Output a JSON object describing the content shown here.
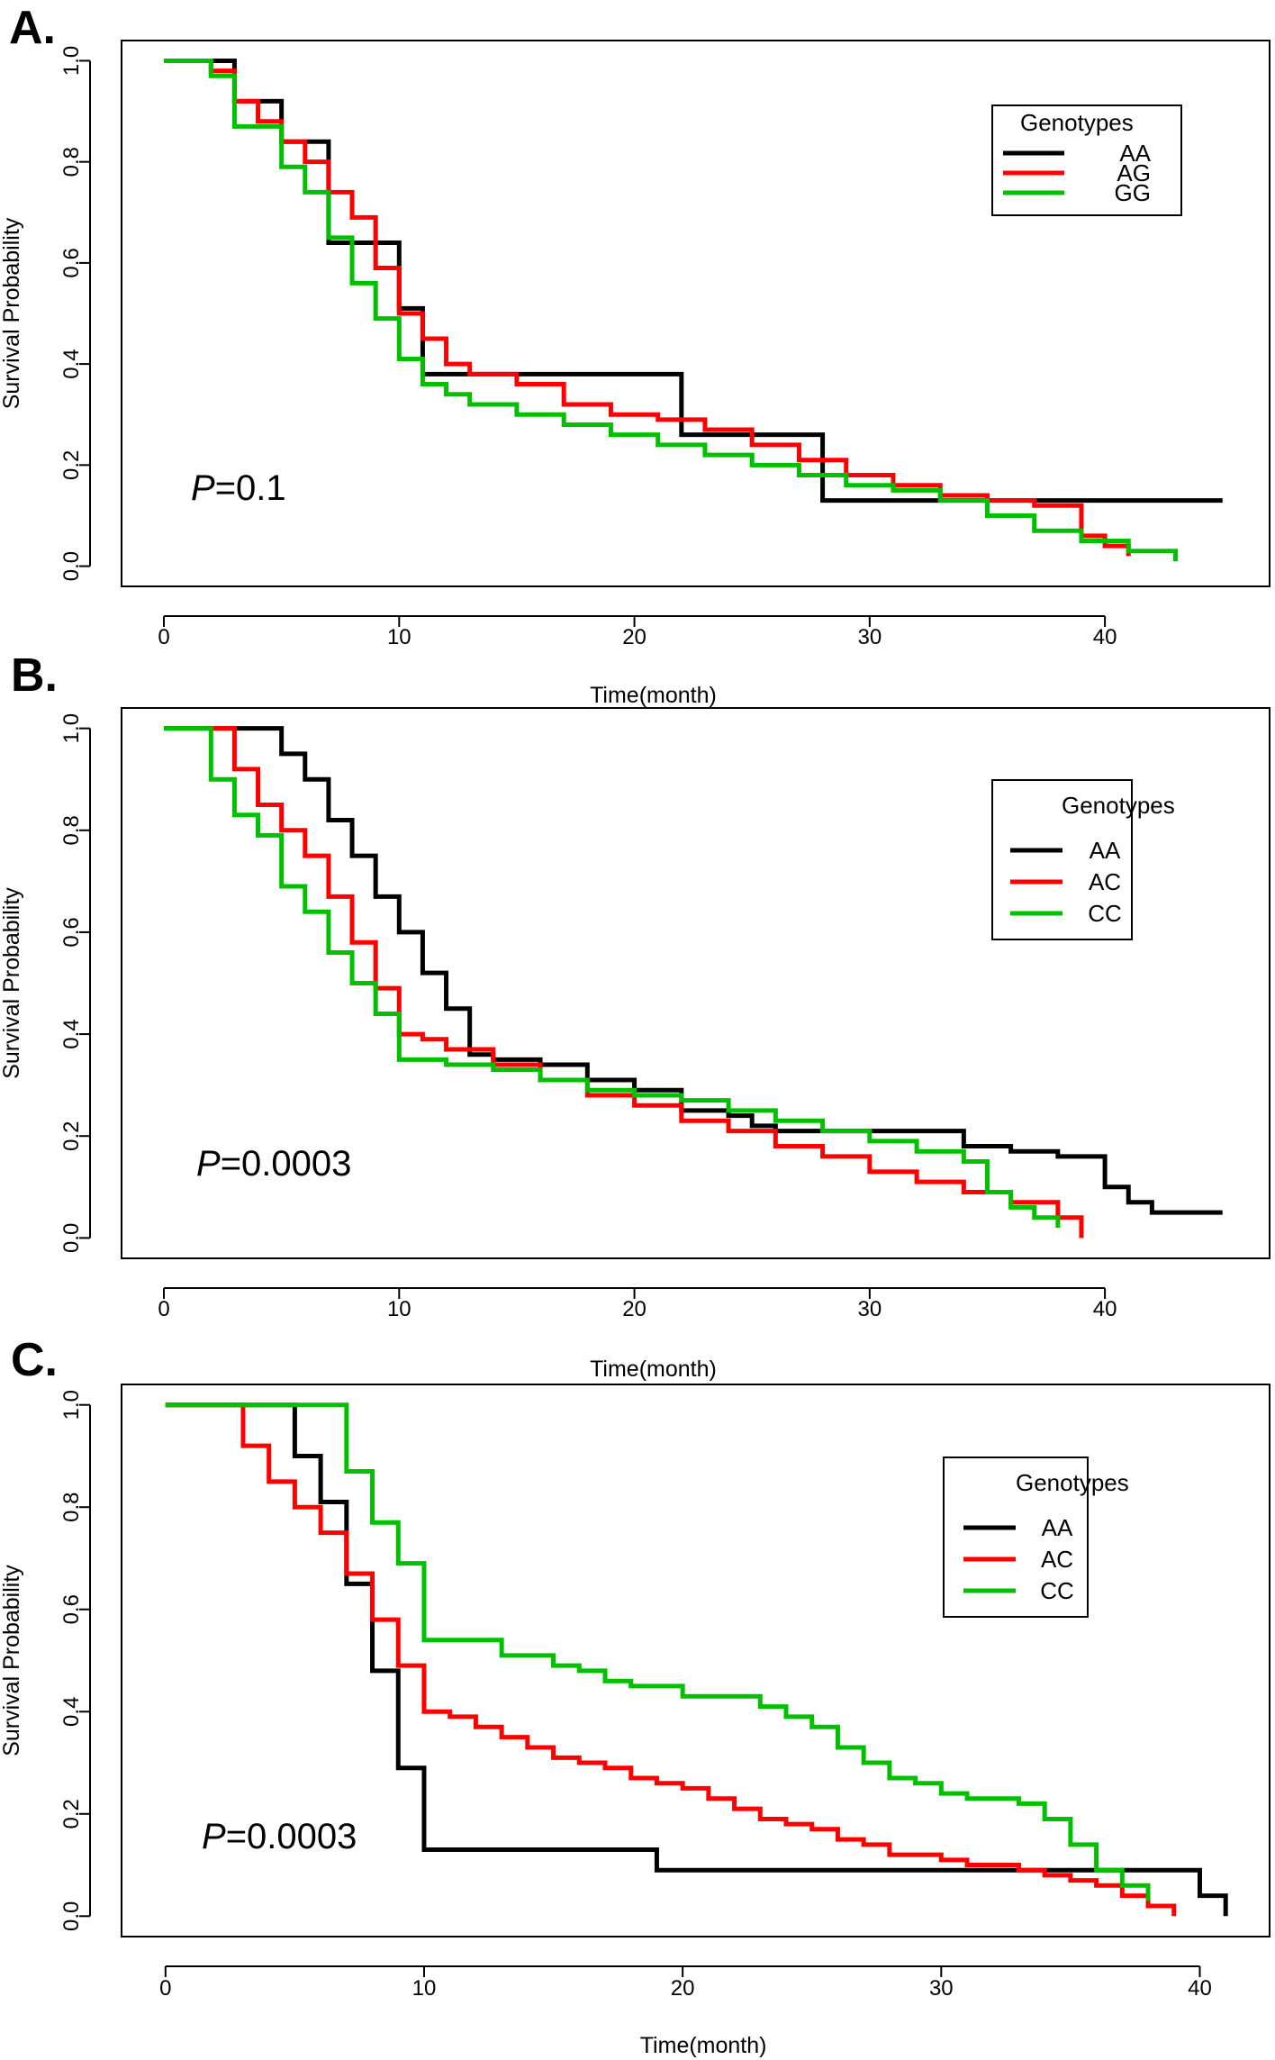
{
  "figure": {
    "x_title": "Time(month)",
    "y_title": "Survival Probability"
  },
  "chart_data": [
    {
      "type": "line",
      "panel": "A.",
      "title": "",
      "xlabel": "Time(month)",
      "ylabel": "Survival Probability",
      "xlim": [
        -1.8,
        47.0
      ],
      "ylim": [
        -0.04,
        1.04
      ],
      "x_ticks": [
        0,
        10,
        20,
        30,
        40
      ],
      "y_ticks": [
        0.0,
        0.2,
        0.4,
        0.6,
        0.8,
        1.0
      ],
      "x_tick_labels": [
        "0",
        "10",
        "20",
        "30",
        "40"
      ],
      "y_tick_labels": [
        "0.0",
        "0.2",
        "0.4",
        "0.6",
        "0.8",
        "1.0"
      ],
      "p_label": "P",
      "p_value": "=0.1",
      "legend": {
        "title": "Genotypes",
        "position": "top-right",
        "style": "right-aligned"
      },
      "series": [
        {
          "name": "AA",
          "color": "#000000",
          "x": [
            0,
            3,
            5,
            7,
            8,
            10,
            11,
            22,
            28,
            45
          ],
          "y": [
            1.0,
            0.92,
            0.84,
            0.64,
            0.64,
            0.51,
            0.38,
            0.26,
            0.13,
            0.13
          ]
        },
        {
          "name": "AG",
          "color": "#ff0000",
          "x": [
            0,
            2,
            3,
            4,
            5,
            6,
            7,
            8,
            9,
            10,
            11,
            12,
            13,
            15,
            17,
            19,
            21,
            23,
            25,
            27,
            29,
            31,
            33,
            35,
            37,
            39,
            40,
            41
          ],
          "y": [
            1.0,
            0.98,
            0.92,
            0.88,
            0.84,
            0.8,
            0.74,
            0.69,
            0.59,
            0.5,
            0.45,
            0.4,
            0.38,
            0.36,
            0.32,
            0.3,
            0.29,
            0.27,
            0.24,
            0.21,
            0.18,
            0.16,
            0.14,
            0.13,
            0.12,
            0.06,
            0.04,
            0.02
          ]
        },
        {
          "name": "GG",
          "color": "#00c000",
          "x": [
            0,
            2,
            3,
            5,
            6,
            7,
            8,
            9,
            10,
            11,
            12,
            13,
            15,
            17,
            19,
            21,
            23,
            25,
            27,
            29,
            31,
            33,
            35,
            37,
            39,
            41,
            43
          ],
          "y": [
            1.0,
            0.97,
            0.87,
            0.79,
            0.74,
            0.65,
            0.56,
            0.49,
            0.41,
            0.36,
            0.34,
            0.32,
            0.3,
            0.28,
            0.26,
            0.24,
            0.22,
            0.2,
            0.18,
            0.16,
            0.15,
            0.13,
            0.1,
            0.07,
            0.05,
            0.03,
            0.01
          ]
        }
      ]
    },
    {
      "type": "line",
      "panel": "B.",
      "title": "",
      "xlabel": "Time(month)",
      "ylabel": "Survival Probability",
      "xlim": [
        -1.8,
        47.0
      ],
      "ylim": [
        -0.04,
        1.04
      ],
      "x_ticks": [
        0,
        10,
        20,
        30,
        40
      ],
      "y_ticks": [
        0.0,
        0.2,
        0.4,
        0.6,
        0.8,
        1.0
      ],
      "x_tick_labels": [
        "0",
        "10",
        "20",
        "30",
        "40"
      ],
      "y_tick_labels": [
        "0.0",
        "0.2",
        "0.4",
        "0.6",
        "0.8",
        "1.0"
      ],
      "p_label": "P",
      "p_value": "=0.0003",
      "legend": {
        "title": "Genotypes",
        "position": "top-right",
        "style": "centered"
      },
      "series": [
        {
          "name": "AA",
          "color": "#000000",
          "x": [
            0,
            5,
            6,
            7,
            8,
            9,
            10,
            11,
            12,
            13,
            14,
            16,
            18,
            20,
            22,
            24,
            25,
            26,
            28,
            30,
            34,
            36,
            38,
            40,
            41,
            42,
            45
          ],
          "y": [
            1.0,
            0.95,
            0.9,
            0.82,
            0.75,
            0.67,
            0.6,
            0.52,
            0.45,
            0.36,
            0.35,
            0.34,
            0.31,
            0.29,
            0.25,
            0.24,
            0.22,
            0.21,
            0.21,
            0.21,
            0.18,
            0.17,
            0.16,
            0.1,
            0.07,
            0.05,
            0.05
          ]
        },
        {
          "name": "AC",
          "color": "#ff0000",
          "x": [
            0,
            3,
            4,
            5,
            6,
            7,
            8,
            9,
            10,
            11,
            12,
            14,
            16,
            18,
            20,
            22,
            24,
            26,
            28,
            30,
            32,
            34,
            36,
            38,
            39
          ],
          "y": [
            1.0,
            0.92,
            0.85,
            0.8,
            0.75,
            0.67,
            0.58,
            0.49,
            0.4,
            0.39,
            0.37,
            0.34,
            0.31,
            0.28,
            0.26,
            0.23,
            0.21,
            0.18,
            0.16,
            0.13,
            0.11,
            0.09,
            0.07,
            0.04,
            0.0
          ]
        },
        {
          "name": "CC",
          "color": "#00c000",
          "x": [
            0,
            2,
            3,
            4,
            5,
            6,
            7,
            8,
            9,
            10,
            12,
            14,
            16,
            18,
            20,
            22,
            24,
            26,
            28,
            30,
            32,
            34,
            35,
            36,
            37,
            38
          ],
          "y": [
            1.0,
            0.9,
            0.83,
            0.79,
            0.69,
            0.64,
            0.56,
            0.5,
            0.44,
            0.35,
            0.34,
            0.33,
            0.31,
            0.29,
            0.28,
            0.27,
            0.25,
            0.23,
            0.21,
            0.19,
            0.17,
            0.15,
            0.09,
            0.06,
            0.04,
            0.02
          ]
        }
      ]
    },
    {
      "type": "line",
      "panel": "C.",
      "title": "",
      "xlabel": "Time(month)",
      "ylabel": "Survival Probability",
      "xlim": [
        -1.7,
        42.7
      ],
      "ylim": [
        -0.04,
        1.04
      ],
      "x_ticks": [
        0,
        10,
        20,
        30,
        40
      ],
      "y_ticks": [
        0.0,
        0.2,
        0.4,
        0.6,
        0.8,
        1.0
      ],
      "x_tick_labels": [
        "0",
        "10",
        "20",
        "30",
        "40"
      ],
      "y_tick_labels": [
        "0.0",
        "0.2",
        "0.4",
        "0.6",
        "0.8",
        "1.0"
      ],
      "p_label": "P",
      "p_value": "=0.0003",
      "legend": {
        "title": "Genotypes",
        "position": "top-right",
        "style": "centered"
      },
      "series": [
        {
          "name": "AA",
          "color": "#000000",
          "x": [
            0,
            5,
            6,
            7,
            8,
            9,
            10,
            19,
            40,
            41
          ],
          "y": [
            1.0,
            0.9,
            0.81,
            0.65,
            0.48,
            0.29,
            0.13,
            0.09,
            0.04,
            0.0
          ]
        },
        {
          "name": "AC",
          "color": "#ff0000",
          "x": [
            0,
            3,
            4,
            5,
            6,
            7,
            8,
            9,
            10,
            11,
            12,
            13,
            14,
            15,
            16,
            17,
            18,
            19,
            20,
            21,
            22,
            23,
            24,
            25,
            26,
            27,
            28,
            29,
            30,
            31,
            32,
            33,
            34,
            35,
            36,
            37,
            38,
            39
          ],
          "y": [
            1.0,
            0.92,
            0.85,
            0.8,
            0.75,
            0.67,
            0.58,
            0.49,
            0.4,
            0.39,
            0.37,
            0.35,
            0.33,
            0.31,
            0.3,
            0.29,
            0.27,
            0.26,
            0.25,
            0.23,
            0.21,
            0.19,
            0.18,
            0.17,
            0.15,
            0.14,
            0.12,
            0.12,
            0.11,
            0.1,
            0.1,
            0.09,
            0.08,
            0.07,
            0.06,
            0.04,
            0.02,
            0.0
          ]
        },
        {
          "name": "CC",
          "color": "#00c000",
          "x": [
            0,
            7,
            8,
            9,
            10,
            13,
            15,
            16,
            17,
            18,
            20,
            23,
            24,
            25,
            26,
            27,
            28,
            29,
            30,
            31,
            32,
            33,
            34,
            35,
            36,
            37,
            38
          ],
          "y": [
            1.0,
            0.87,
            0.77,
            0.69,
            0.54,
            0.51,
            0.49,
            0.48,
            0.46,
            0.45,
            0.43,
            0.41,
            0.39,
            0.37,
            0.33,
            0.3,
            0.27,
            0.26,
            0.24,
            0.23,
            0.23,
            0.22,
            0.19,
            0.14,
            0.09,
            0.06,
            0.03
          ]
        }
      ]
    }
  ]
}
